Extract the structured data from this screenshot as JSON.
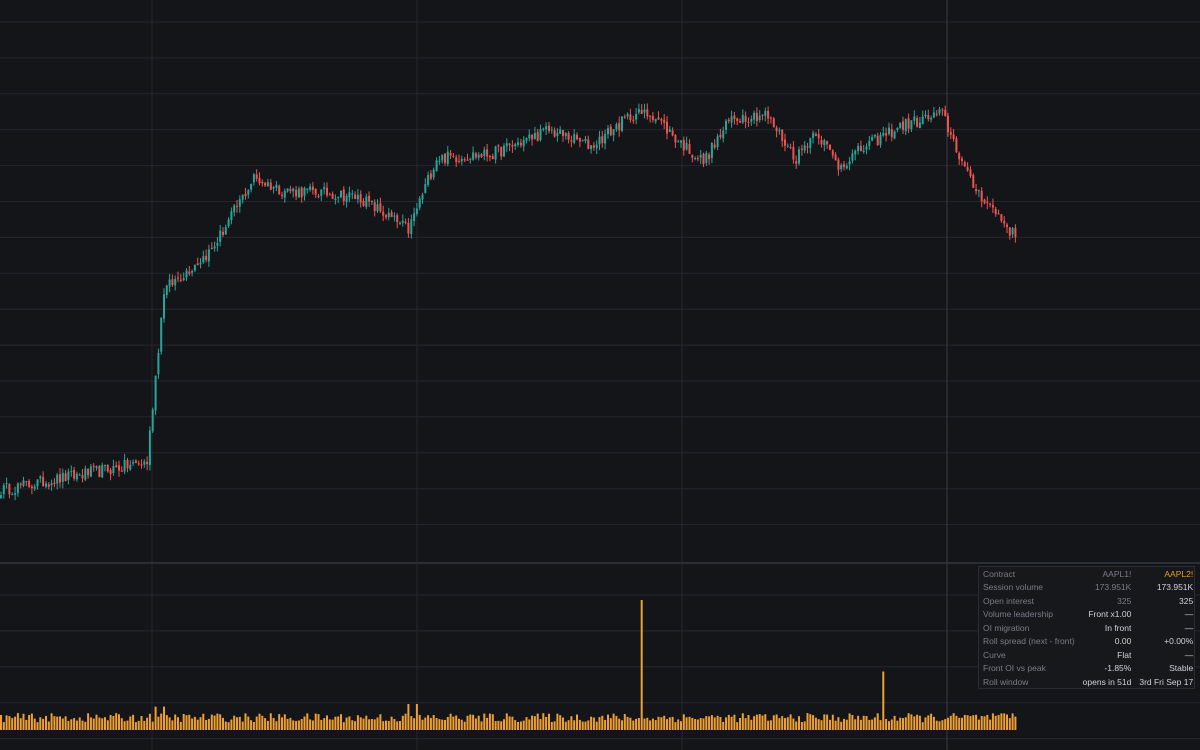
{
  "chart_data": {
    "type": "candlestick",
    "description_price": "Daily OHLC-style candles (green up, red down) with a volume histogram below",
    "ylim_price": [
      0,
      100
    ],
    "ylim_volume": [
      0,
      100
    ],
    "colors": {
      "up": "#26a69a",
      "down": "#ef5350",
      "volume": "#f0a030",
      "background": "#141519",
      "grid": "#25272d"
    },
    "segments": [
      {
        "start": 0,
        "end": 52,
        "from": 5,
        "to": 12
      },
      {
        "start": 52,
        "end": 58,
        "from": 12,
        "to": 55
      },
      {
        "start": 58,
        "end": 75,
        "from": 55,
        "to": 65
      },
      {
        "start": 75,
        "end": 90,
        "from": 65,
        "to": 83
      },
      {
        "start": 90,
        "end": 100,
        "from": 83,
        "to": 80
      },
      {
        "start": 100,
        "end": 120,
        "from": 80,
        "to": 79
      },
      {
        "start": 120,
        "end": 128,
        "from": 79,
        "to": 78
      },
      {
        "start": 128,
        "end": 145,
        "from": 78,
        "to": 70
      },
      {
        "start": 145,
        "end": 155,
        "from": 70,
        "to": 88
      },
      {
        "start": 155,
        "end": 175,
        "from": 88,
        "to": 89
      },
      {
        "start": 175,
        "end": 195,
        "from": 89,
        "to": 95
      },
      {
        "start": 195,
        "end": 210,
        "from": 95,
        "to": 91
      },
      {
        "start": 210,
        "end": 225,
        "from": 91,
        "to": 99
      },
      {
        "start": 225,
        "end": 232,
        "from": 99,
        "to": 99
      },
      {
        "start": 232,
        "end": 240,
        "from": 99,
        "to": 93
      },
      {
        "start": 240,
        "end": 250,
        "from": 93,
        "to": 87
      },
      {
        "start": 250,
        "end": 260,
        "from": 87,
        "to": 98
      },
      {
        "start": 260,
        "end": 272,
        "from": 98,
        "to": 99
      },
      {
        "start": 272,
        "end": 283,
        "from": 99,
        "to": 88
      },
      {
        "start": 283,
        "end": 290,
        "from": 88,
        "to": 95
      },
      {
        "start": 290,
        "end": 298,
        "from": 95,
        "to": 86
      },
      {
        "start": 298,
        "end": 308,
        "from": 86,
        "to": 91
      },
      {
        "start": 308,
        "end": 320,
        "from": 91,
        "to": 96
      },
      {
        "start": 320,
        "end": 335,
        "from": 96,
        "to": 99
      },
      {
        "start": 335,
        "end": 345,
        "from": 99,
        "to": 82
      },
      {
        "start": 345,
        "end": 358,
        "from": 82,
        "to": 71
      },
      {
        "start": 358,
        "end": 362,
        "from": 71,
        "to": 67
      }
    ],
    "volume_base": 6,
    "volume_spikes": [
      {
        "index": 228,
        "value": 100
      },
      {
        "index": 314,
        "value": 45
      },
      {
        "index": 55,
        "value": 18
      },
      {
        "index": 58,
        "value": 18
      },
      {
        "index": 145,
        "value": 20
      },
      {
        "index": 148,
        "value": 20
      }
    ],
    "n_bars": 362
  },
  "info_panel": {
    "header": {
      "label": "Contract",
      "col1": "AAPL1!",
      "col2": "AAPL2!"
    },
    "rows": [
      {
        "label": "Session volume",
        "col1": "173.951K",
        "col2": "173.951K",
        "dim": true
      },
      {
        "label": "Open interest",
        "col1": "325",
        "col2": "325",
        "dim": true
      },
      {
        "label": "Volume leadership",
        "col1": "Front x1.00",
        "col2": "—"
      },
      {
        "label": "OI migration",
        "col1": "In front",
        "col2": "—"
      },
      {
        "label": "Roll spread (next - front)",
        "col1": "0.00",
        "col2": "+0.00%"
      },
      {
        "label": "Curve",
        "col1": "Flat",
        "col2": "—"
      },
      {
        "label": "Front OI vs peak",
        "col1": "-1.85%",
        "col2": "Stable"
      },
      {
        "label": "Roll window",
        "col1": "opens in 51d",
        "col2": "3rd Fri Sep 17"
      }
    ]
  }
}
